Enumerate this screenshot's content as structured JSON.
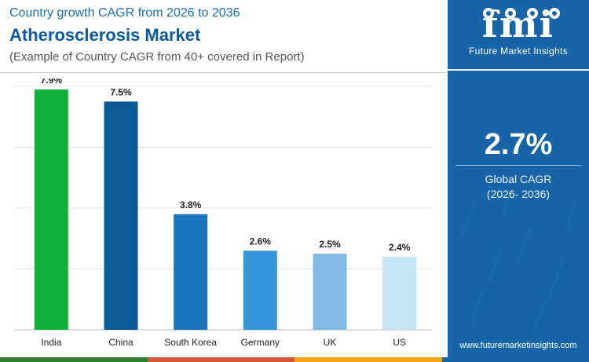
{
  "header": {
    "eyebrow": "Country growth CAGR from 2026 to 2036",
    "title": "Atherosclerosis Market",
    "subtitle": "(Example of Country CAGR from 40+ covered in Report)"
  },
  "sidebar": {
    "brand_mark": "fmi",
    "brand_name": "Future Market Insights",
    "global_cagr_value": "2.7%",
    "global_cagr_label": "Global CAGR",
    "global_cagr_period": "(2026- 2036)",
    "website": "www.futuremarketinsights.com",
    "background_color": "#1764a8"
  },
  "chart_data": {
    "type": "bar",
    "categories": [
      "India",
      "China",
      "South Korea",
      "Germany",
      "UK",
      "US"
    ],
    "values": [
      7.9,
      7.5,
      3.8,
      2.6,
      2.5,
      2.4
    ],
    "data_labels": [
      "7.9%",
      "7.5%",
      "3.8%",
      "2.6%",
      "2.5%",
      "2.4%"
    ],
    "colors": [
      "#10b03a",
      "#0b5a96",
      "#1c74ba",
      "#3296d8",
      "#82bce6",
      "#c6e2f5"
    ],
    "ylim": [
      0,
      8
    ],
    "yticks": [
      0,
      2,
      4,
      6,
      8
    ],
    "grid": true,
    "title": "",
    "xlabel": "",
    "ylabel": ""
  },
  "bottom_stripe_colors": [
    "#2e7d32",
    "#d3573a",
    "#f2a51a",
    "#1764a8"
  ]
}
